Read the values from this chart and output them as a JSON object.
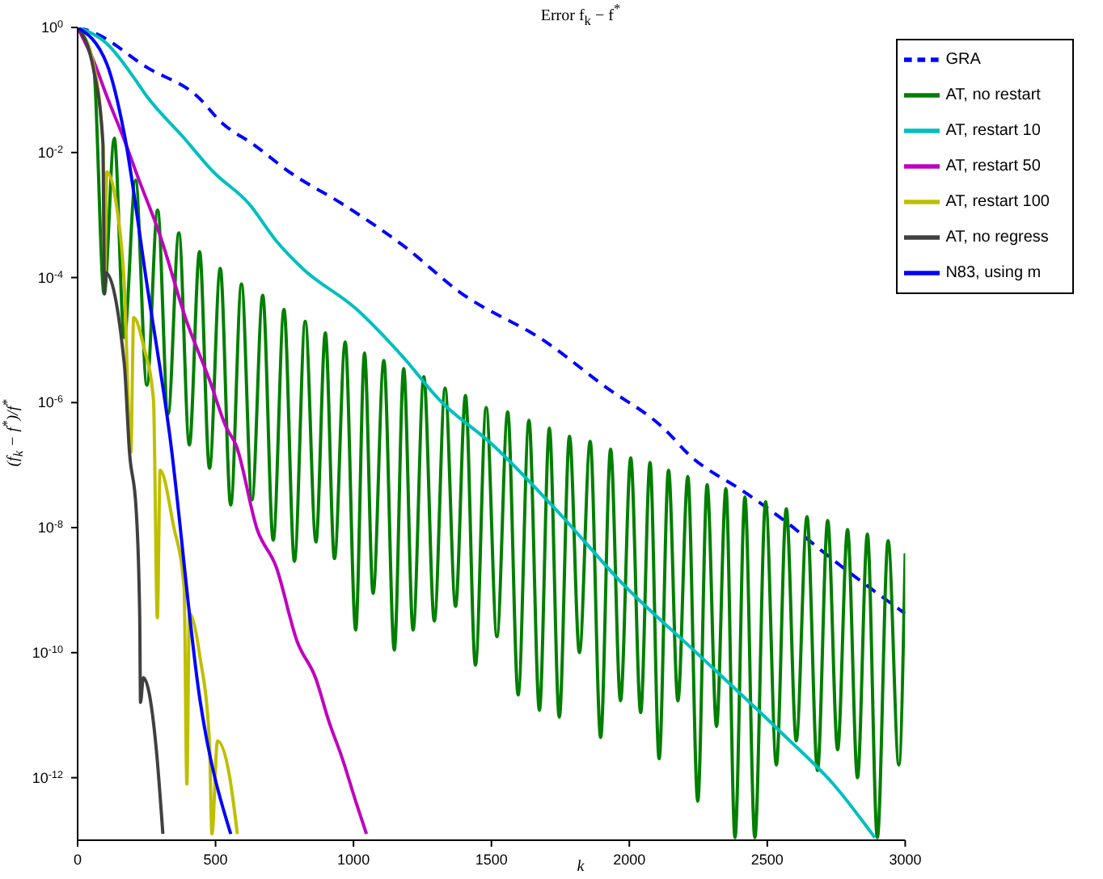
{
  "chart_data": {
    "type": "line",
    "title": "Error f$_{k}$ − f$^{*}$",
    "xlabel": "k",
    "ylabel": "(f$_{k}$ − f$^{*}$)/f$^{*}$",
    "log": "y",
    "grid": false,
    "legend": "top right",
    "marker": "none",
    "xlim": [
      0,
      3000
    ],
    "xticks": [
      0,
      500,
      1000,
      1500,
      2000,
      2500,
      3000
    ],
    "ylim": [
      1e-13,
      1
    ],
    "yticks": [
      {
        "value": 1,
        "label": "10$^{0}$"
      },
      {
        "value": 0.01,
        "label": "10$^{-2}$"
      },
      {
        "value": 0.0001,
        "label": "10$^{-4}$"
      },
      {
        "value": 1e-06,
        "label": "10$^{-6}$"
      },
      {
        "value": 1e-08,
        "label": "10$^{-8}$"
      },
      {
        "value": 1e-10,
        "label": "10$^{-10}$"
      },
      {
        "value": 1e-12,
        "label": "10$^{-12}$"
      }
    ],
    "series": [
      {
        "name": "GRA",
        "color": "#0000ff",
        "line_style": "dashed",
        "x": [
          0,
          58,
          251,
          434,
          526,
          637,
          767,
          960,
          1182,
          1384,
          1698,
          1905,
          2132,
          2214,
          2422,
          2552,
          2745,
          3000
        ],
        "values": [
          1,
          0.83,
          0.23,
          0.079,
          0.029,
          0.0135,
          0.0049,
          0.0015,
          0.00032,
          5.9e-05,
          9.3e-06,
          1.9e-06,
          3.6e-07,
          1.5e-07,
          3.6e-08,
          1.4e-08,
          2.9e-09,
          4.2e-10
        ]
      },
      {
        "name": "AT, no restart",
        "color": "#007f00",
        "x": [
          0,
          58,
          96,
          133,
          169,
          210,
          251,
          290,
          328,
          367,
          405,
          442,
          478,
          517,
          555,
          594,
          632,
          671,
          709,
          748,
          786,
          825,
          864,
          898,
          931,
          970,
          1008,
          1040,
          1071,
          1110,
          1148,
          1182,
          1216,
          1255,
          1293,
          1332,
          1370,
          1406,
          1442,
          1481,
          1520,
          1559,
          1597,
          1636,
          1674,
          1710,
          1746,
          1783,
          1819,
          1858,
          1896,
          1932,
          1968,
          2005,
          2041,
          2075,
          2108,
          2142,
          2176,
          2212,
          2248,
          2282,
          2316,
          2350,
          2383,
          2419,
          2455,
          2494,
          2533,
          2569,
          2605,
          2644,
          2682,
          2719,
          2755,
          2791,
          2827,
          2863,
          2899,
          2938,
          2977,
          3000
        ],
        "values": [
          1,
          0.25,
          5.5e-05,
          0.017,
          1.1e-05,
          0.0036,
          1.9e-06,
          0.0012,
          6.6e-07,
          0.00052,
          2.1e-07,
          0.00026,
          8.9e-08,
          0.00014,
          2.3e-08,
          7.9e-05,
          2.8e-08,
          5.2e-05,
          6.3e-09,
          3.1e-05,
          2.9e-09,
          2e-05,
          5.9e-09,
          1.3e-05,
          3.2e-09,
          9.3e-06,
          2.3e-10,
          6.2e-06,
          8.9e-10,
          4.7e-06,
          1.1e-10,
          3.5e-06,
          2.3e-10,
          2.6e-06,
          3.2e-10,
          1.7e-06,
          5.5e-10,
          1.3e-06,
          6.3e-11,
          8.3e-07,
          1.8e-10,
          7.1e-07,
          2.1e-11,
          5.2e-07,
          1.2e-11,
          3.9e-07,
          9.3e-12,
          2.9e-07,
          1e-10,
          2.4e-07,
          4.4e-12,
          1.8e-07,
          1.7e-11,
          1.3e-07,
          1.1e-11,
          1.1e-07,
          2e-12,
          8.3e-08,
          1.7e-11,
          6.6e-08,
          4.2e-13,
          4.9e-08,
          6.6e-12,
          4.2e-08,
          1.1e-13,
          3.1e-08,
          1.1e-13,
          2.6e-08,
          1.6e-12,
          2e-08,
          3.9e-12,
          1.5e-08,
          1.3e-12,
          1.3e-08,
          2.8e-12,
          9.3e-09,
          1e-12,
          7.9e-09,
          1.1e-13,
          6.2e-09,
          1.6e-12,
          3.9e-09
        ]
      },
      {
        "name": "AT, restart 10",
        "color": "#00bfbf",
        "x": [
          0,
          106,
          203,
          251,
          381,
          492,
          622,
          719,
          815,
          1008,
          1182,
          1312,
          1505,
          1746,
          1973,
          2243,
          2552,
          2745,
          2890
        ],
        "values": [
          1,
          0.55,
          0.16,
          0.079,
          0.018,
          0.0049,
          0.0015,
          0.00039,
          0.00014,
          3.2e-05,
          5.2e-06,
          1.1e-06,
          2.1e-07,
          1.7e-08,
          1.3e-09,
          1e-10,
          5.2e-12,
          7.4e-13,
          1.1e-13
        ]
      },
      {
        "name": "AT, restart 50",
        "color": "#bf00bf",
        "x": [
          0,
          58,
          106,
          169,
          217,
          299,
          395,
          478,
          540,
          574,
          651,
          719,
          796,
          863,
          911,
          960,
          1008,
          1047
        ],
        "values": [
          1,
          0.29,
          0.079,
          0.016,
          0.0042,
          0.00047,
          2e-05,
          2.3e-06,
          3.9e-07,
          2.1e-07,
          9.3e-09,
          2.4e-09,
          1.5e-10,
          3.9e-11,
          7.9e-12,
          2e-12,
          4.2e-13,
          1.26e-13
        ]
      },
      {
        "name": "AT, restart 100",
        "color": "#bfbf00",
        "x": [
          0,
          58,
          92,
          98,
          106,
          140,
          169,
          193,
          203,
          241,
          275,
          289,
          299,
          347,
          386,
          396,
          405,
          444,
          478,
          487,
          507,
          550,
          579
        ],
        "values": [
          1,
          0.25,
          0.0126,
          0.0001,
          0.0049,
          0.0015,
          7.9e-05,
          1.6e-07,
          2.3e-05,
          7.4e-06,
          1.1e-06,
          3.6e-10,
          8.3e-08,
          1.1e-08,
          1.1e-09,
          7.9e-13,
          4.2e-10,
          8.3e-11,
          3.6e-12,
          1.26e-13,
          3.9e-12,
          1.1e-12,
          1.26e-13
        ]
      },
      {
        "name": "AT, no regress",
        "color": "#404040",
        "x": [
          0,
          58,
          92,
          96,
          98,
          101,
          169,
          188,
          212,
          225,
          228,
          238,
          285,
          309
        ],
        "values": [
          1,
          0.21,
          0.0135,
          0.00013,
          5.5e-05,
          0.00012,
          4.2e-06,
          1.6e-07,
          2e-08,
          4e-10,
          1.6e-11,
          4e-11,
          2.9e-12,
          1.26e-13
        ]
      },
      {
        "name": "N83, using m",
        "color": "#0000ff",
        "x": [
          0,
          106,
          169,
          251,
          333,
          444,
          555
        ],
        "values": [
          1,
          0.26,
          0.02,
          7.9e-05,
          3.2e-07,
          1.7e-11,
          1.26e-13
        ]
      }
    ]
  }
}
